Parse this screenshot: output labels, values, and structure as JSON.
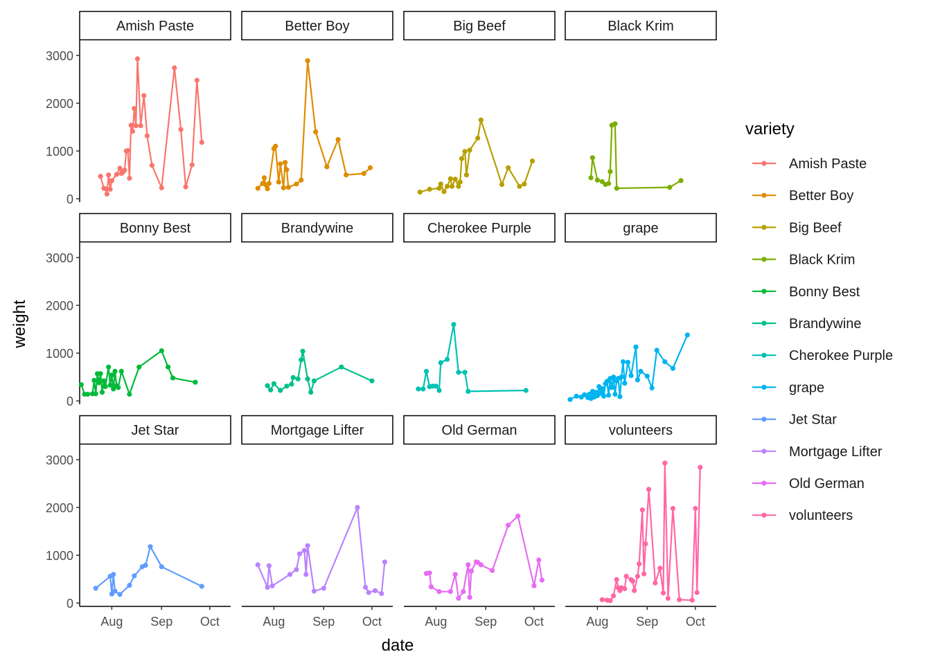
{
  "chart_data": {
    "type": "line",
    "facet_by": "variety",
    "facet_layout": "3 rows x 4 columns",
    "xlabel": "date",
    "ylabel": "weight",
    "x_ticks": [
      "Aug",
      "Sep",
      "Oct"
    ],
    "x_tick_dates": [
      "2020-08-01",
      "2020-09-01",
      "2020-10-01"
    ],
    "xlim": [
      "2020-07-12",
      "2020-10-14"
    ],
    "y_ticks": [
      0,
      1000,
      2000,
      3000
    ],
    "ylim": [
      -70,
      3320
    ],
    "grid": false,
    "legend": {
      "title": "variety",
      "placement": "right"
    },
    "series": [
      {
        "name": "Amish Paste",
        "color": "#F8766D",
        "points": [
          [
            "2020-07-25",
            470
          ],
          [
            "2020-07-27",
            220
          ],
          [
            "2020-07-28",
            210
          ],
          [
            "2020-07-29",
            100
          ],
          [
            "2020-07-30",
            500
          ],
          [
            "2020-07-31",
            200
          ],
          [
            "2020-08-01",
            380
          ],
          [
            "2020-08-04",
            510
          ],
          [
            "2020-08-06",
            640
          ],
          [
            "2020-08-07",
            530
          ],
          [
            "2020-08-08",
            560
          ],
          [
            "2020-08-09",
            600
          ],
          [
            "2020-08-10",
            1000
          ],
          [
            "2020-08-11",
            1010
          ],
          [
            "2020-08-12",
            430
          ],
          [
            "2020-08-13",
            1540
          ],
          [
            "2020-08-14",
            1410
          ],
          [
            "2020-08-15",
            1890
          ],
          [
            "2020-08-16",
            1530
          ],
          [
            "2020-08-17",
            2930
          ],
          [
            "2020-08-19",
            1530
          ],
          [
            "2020-08-21",
            2160
          ],
          [
            "2020-08-23",
            1320
          ],
          [
            "2020-08-26",
            700
          ],
          [
            "2020-09-01",
            230
          ],
          [
            "2020-09-09",
            2740
          ],
          [
            "2020-09-13",
            1450
          ],
          [
            "2020-09-16",
            250
          ],
          [
            "2020-09-20",
            710
          ],
          [
            "2020-09-23",
            2480
          ],
          [
            "2020-09-26",
            1180
          ]
        ]
      },
      {
        "name": "Better Boy",
        "color": "#DE8C00",
        "points": [
          [
            "2020-07-22",
            220
          ],
          [
            "2020-07-25",
            320
          ],
          [
            "2020-07-26",
            440
          ],
          [
            "2020-07-27",
            290
          ],
          [
            "2020-07-28",
            210
          ],
          [
            "2020-07-29",
            320
          ],
          [
            "2020-08-01",
            1050
          ],
          [
            "2020-08-02",
            1100
          ],
          [
            "2020-08-04",
            350
          ],
          [
            "2020-08-05",
            730
          ],
          [
            "2020-08-07",
            230
          ],
          [
            "2020-08-08",
            760
          ],
          [
            "2020-08-09",
            610
          ],
          [
            "2020-08-10",
            240
          ],
          [
            "2020-08-15",
            310
          ],
          [
            "2020-08-18",
            390
          ],
          [
            "2020-08-22",
            2890
          ],
          [
            "2020-08-27",
            1400
          ],
          [
            "2020-09-03",
            670
          ],
          [
            "2020-09-10",
            1240
          ],
          [
            "2020-09-15",
            500
          ],
          [
            "2020-09-26",
            530
          ],
          [
            "2020-09-30",
            650
          ]
        ]
      },
      {
        "name": "Big Beef",
        "color": "#B79F00",
        "points": [
          [
            "2020-07-22",
            140
          ],
          [
            "2020-07-28",
            200
          ],
          [
            "2020-08-03",
            220
          ],
          [
            "2020-08-04",
            310
          ],
          [
            "2020-08-06",
            150
          ],
          [
            "2020-08-08",
            260
          ],
          [
            "2020-08-10",
            420
          ],
          [
            "2020-08-11",
            260
          ],
          [
            "2020-08-13",
            410
          ],
          [
            "2020-08-15",
            260
          ],
          [
            "2020-08-16",
            350
          ],
          [
            "2020-08-17",
            840
          ],
          [
            "2020-08-19",
            990
          ],
          [
            "2020-08-20",
            500
          ],
          [
            "2020-08-22",
            1020
          ],
          [
            "2020-08-27",
            1270
          ],
          [
            "2020-08-29",
            1650
          ],
          [
            "2020-09-11",
            300
          ],
          [
            "2020-09-15",
            650
          ],
          [
            "2020-09-22",
            260
          ],
          [
            "2020-09-25",
            310
          ],
          [
            "2020-09-30",
            790
          ]
        ]
      },
      {
        "name": "Black Krim",
        "color": "#7CAE00",
        "points": [
          [
            "2020-07-28",
            440
          ],
          [
            "2020-07-29",
            860
          ],
          [
            "2020-08-01",
            390
          ],
          [
            "2020-08-04",
            360
          ],
          [
            "2020-08-06",
            300
          ],
          [
            "2020-08-08",
            320
          ],
          [
            "2020-08-09",
            570
          ],
          [
            "2020-08-10",
            1540
          ],
          [
            "2020-08-12",
            1570
          ],
          [
            "2020-08-13",
            220
          ],
          [
            "2020-09-15",
            240
          ],
          [
            "2020-09-22",
            380
          ]
        ]
      },
      {
        "name": "Bonny Best",
        "color": "#00BA38",
        "points": [
          [
            "2020-07-13",
            340
          ],
          [
            "2020-07-15",
            140
          ],
          [
            "2020-07-17",
            140
          ],
          [
            "2020-07-20",
            150
          ],
          [
            "2020-07-21",
            430
          ],
          [
            "2020-07-22",
            150
          ],
          [
            "2020-07-23",
            570
          ],
          [
            "2020-07-24",
            380
          ],
          [
            "2020-07-25",
            570
          ],
          [
            "2020-07-26",
            180
          ],
          [
            "2020-07-27",
            420
          ],
          [
            "2020-07-28",
            300
          ],
          [
            "2020-07-30",
            710
          ],
          [
            "2020-07-31",
            330
          ],
          [
            "2020-08-01",
            540
          ],
          [
            "2020-08-02",
            250
          ],
          [
            "2020-08-03",
            620
          ],
          [
            "2020-08-04",
            320
          ],
          [
            "2020-08-05",
            280
          ],
          [
            "2020-08-07",
            620
          ],
          [
            "2020-08-12",
            140
          ],
          [
            "2020-08-18",
            710
          ],
          [
            "2020-09-01",
            1050
          ],
          [
            "2020-09-05",
            710
          ],
          [
            "2020-09-08",
            480
          ],
          [
            "2020-09-22",
            390
          ]
        ]
      },
      {
        "name": "Brandywine",
        "color": "#00C08B",
        "points": [
          [
            "2020-07-28",
            320
          ],
          [
            "2020-07-30",
            230
          ],
          [
            "2020-08-01",
            360
          ],
          [
            "2020-08-05",
            220
          ],
          [
            "2020-08-09",
            310
          ],
          [
            "2020-08-12",
            350
          ],
          [
            "2020-08-13",
            490
          ],
          [
            "2020-08-16",
            460
          ],
          [
            "2020-08-18",
            860
          ],
          [
            "2020-08-19",
            1040
          ],
          [
            "2020-08-22",
            460
          ],
          [
            "2020-08-24",
            180
          ],
          [
            "2020-08-26",
            420
          ],
          [
            "2020-09-12",
            710
          ],
          [
            "2020-10-01",
            420
          ]
        ]
      },
      {
        "name": "Cherokee Purple",
        "color": "#00C1B2",
        "points": [
          [
            "2020-07-21",
            250
          ],
          [
            "2020-07-24",
            250
          ],
          [
            "2020-07-26",
            620
          ],
          [
            "2020-07-28",
            300
          ],
          [
            "2020-07-30",
            310
          ],
          [
            "2020-08-01",
            310
          ],
          [
            "2020-08-03",
            220
          ],
          [
            "2020-08-04",
            800
          ],
          [
            "2020-08-08",
            870
          ],
          [
            "2020-08-12",
            1600
          ],
          [
            "2020-08-15",
            600
          ],
          [
            "2020-08-19",
            600
          ],
          [
            "2020-08-21",
            200
          ],
          [
            "2020-09-26",
            220
          ]
        ]
      },
      {
        "name": "grape",
        "color": "#00B4F0",
        "points": [
          [
            "2020-07-15",
            30
          ],
          [
            "2020-07-19",
            100
          ],
          [
            "2020-07-22",
            80
          ],
          [
            "2020-07-24",
            130
          ],
          [
            "2020-07-26",
            70
          ],
          [
            "2020-07-27",
            140
          ],
          [
            "2020-07-28",
            50
          ],
          [
            "2020-07-29",
            200
          ],
          [
            "2020-07-30",
            80
          ],
          [
            "2020-07-31",
            180
          ],
          [
            "2020-08-01",
            110
          ],
          [
            "2020-08-02",
            300
          ],
          [
            "2020-08-03",
            160
          ],
          [
            "2020-08-04",
            260
          ],
          [
            "2020-08-05",
            100
          ],
          [
            "2020-08-06",
            360
          ],
          [
            "2020-08-07",
            410
          ],
          [
            "2020-08-08",
            120
          ],
          [
            "2020-08-09",
            470
          ],
          [
            "2020-08-10",
            280
          ],
          [
            "2020-08-11",
            500
          ],
          [
            "2020-08-12",
            140
          ],
          [
            "2020-08-13",
            420
          ],
          [
            "2020-08-14",
            470
          ],
          [
            "2020-08-15",
            90
          ],
          [
            "2020-08-16",
            500
          ],
          [
            "2020-08-17",
            820
          ],
          [
            "2020-08-18",
            370
          ],
          [
            "2020-08-20",
            810
          ],
          [
            "2020-08-22",
            530
          ],
          [
            "2020-08-25",
            1130
          ],
          [
            "2020-08-26",
            440
          ],
          [
            "2020-08-28",
            620
          ],
          [
            "2020-09-01",
            520
          ],
          [
            "2020-09-04",
            270
          ],
          [
            "2020-09-07",
            1060
          ],
          [
            "2020-09-12",
            820
          ],
          [
            "2020-09-17",
            680
          ],
          [
            "2020-09-26",
            1380
          ]
        ]
      },
      {
        "name": "Jet Star",
        "color": "#619CFF",
        "points": [
          [
            "2020-07-22",
            310
          ],
          [
            "2020-07-31",
            560
          ],
          [
            "2020-08-01",
            190
          ],
          [
            "2020-08-02",
            600
          ],
          [
            "2020-08-03",
            250
          ],
          [
            "2020-08-06",
            180
          ],
          [
            "2020-08-12",
            370
          ],
          [
            "2020-08-15",
            570
          ],
          [
            "2020-08-20",
            760
          ],
          [
            "2020-08-22",
            790
          ],
          [
            "2020-08-25",
            1180
          ],
          [
            "2020-09-01",
            760
          ],
          [
            "2020-09-26",
            350
          ]
        ]
      },
      {
        "name": "Mortgage Lifter",
        "color": "#B983FF",
        "points": [
          [
            "2020-07-22",
            800
          ],
          [
            "2020-07-28",
            330
          ],
          [
            "2020-07-29",
            780
          ],
          [
            "2020-07-31",
            360
          ],
          [
            "2020-08-11",
            600
          ],
          [
            "2020-08-15",
            700
          ],
          [
            "2020-08-17",
            1030
          ],
          [
            "2020-08-20",
            1100
          ],
          [
            "2020-08-21",
            600
          ],
          [
            "2020-08-22",
            1200
          ],
          [
            "2020-08-26",
            250
          ],
          [
            "2020-09-01",
            310
          ],
          [
            "2020-09-22",
            2000
          ],
          [
            "2020-09-27",
            330
          ],
          [
            "2020-09-29",
            220
          ],
          [
            "2020-10-03",
            260
          ],
          [
            "2020-10-07",
            200
          ],
          [
            "2020-10-09",
            860
          ]
        ]
      },
      {
        "name": "Old German",
        "color": "#E76BF3",
        "points": [
          [
            "2020-07-26",
            620
          ],
          [
            "2020-07-28",
            630
          ],
          [
            "2020-07-29",
            340
          ],
          [
            "2020-08-03",
            240
          ],
          [
            "2020-08-10",
            240
          ],
          [
            "2020-08-13",
            600
          ],
          [
            "2020-08-15",
            100
          ],
          [
            "2020-08-18",
            240
          ],
          [
            "2020-08-21",
            800
          ],
          [
            "2020-08-22",
            120
          ],
          [
            "2020-08-23",
            670
          ],
          [
            "2020-08-26",
            860
          ],
          [
            "2020-08-27",
            850
          ],
          [
            "2020-08-29",
            800
          ],
          [
            "2020-09-05",
            680
          ],
          [
            "2020-09-15",
            1630
          ],
          [
            "2020-09-21",
            1820
          ],
          [
            "2020-10-01",
            360
          ],
          [
            "2020-10-04",
            900
          ],
          [
            "2020-10-06",
            480
          ]
        ]
      },
      {
        "name": "volunteers",
        "color": "#FF67A4",
        "points": [
          [
            "2020-08-04",
            70
          ],
          [
            "2020-08-07",
            60
          ],
          [
            "2020-08-09",
            50
          ],
          [
            "2020-08-11",
            150
          ],
          [
            "2020-08-13",
            490
          ],
          [
            "2020-08-14",
            320
          ],
          [
            "2020-08-15",
            260
          ],
          [
            "2020-08-16",
            320
          ],
          [
            "2020-08-18",
            300
          ],
          [
            "2020-08-19",
            560
          ],
          [
            "2020-08-22",
            490
          ],
          [
            "2020-08-23",
            460
          ],
          [
            "2020-08-24",
            260
          ],
          [
            "2020-08-26",
            560
          ],
          [
            "2020-08-27",
            820
          ],
          [
            "2020-08-29",
            1950
          ],
          [
            "2020-08-30",
            610
          ],
          [
            "2020-08-31",
            1240
          ],
          [
            "2020-09-02",
            2380
          ],
          [
            "2020-09-06",
            420
          ],
          [
            "2020-09-09",
            730
          ],
          [
            "2020-09-11",
            210
          ],
          [
            "2020-09-12",
            2930
          ],
          [
            "2020-09-14",
            100
          ],
          [
            "2020-09-17",
            1980
          ],
          [
            "2020-09-21",
            70
          ],
          [
            "2020-09-29",
            60
          ],
          [
            "2020-10-01",
            1980
          ],
          [
            "2020-10-02",
            220
          ],
          [
            "2020-10-04",
            2840
          ]
        ]
      }
    ]
  }
}
